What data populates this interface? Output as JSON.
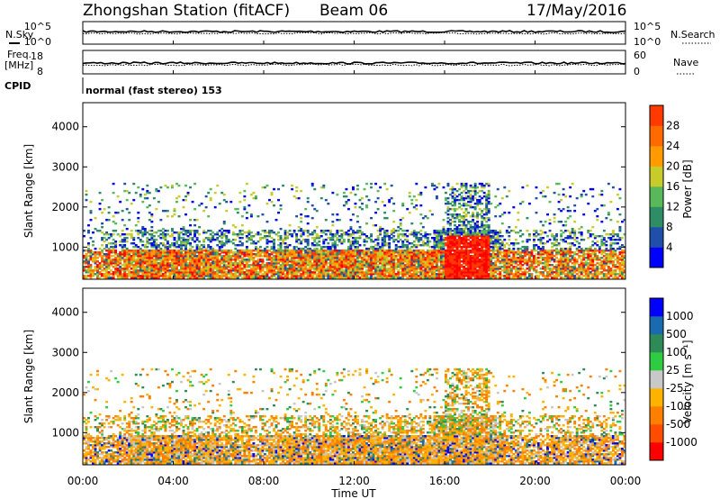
{
  "header": {
    "station": "Zhongshan Station (fitACF)",
    "beam": "Beam 06",
    "date": "17/May/2016"
  },
  "panels": {
    "nsky": {
      "label": "N.Sky",
      "tick_top": "10^5",
      "tick_bottom": "10^0"
    },
    "nsearch": {
      "label": "N.Search",
      "tick_top": "10^5",
      "tick_bottom": "10^0"
    },
    "freq": {
      "label_line1": "Freq.",
      "label_line2": "[MHz]",
      "tick_top": "18",
      "tick_bottom": "8"
    },
    "nave": {
      "label": "Nave",
      "tick_top": "60",
      "tick_bottom": "0"
    },
    "cpid": {
      "label": "CPID",
      "text": "normal (fast stereo) 153"
    }
  },
  "colors": {
    "power": [
      "#0000ff",
      "#1f4fa8",
      "#2f8d66",
      "#58b85a",
      "#c8cc2a",
      "#ff9b00",
      "#ff6a00",
      "#ff3a00",
      "#ff0000"
    ],
    "velocity": [
      "#ff0000",
      "#ff4d00",
      "#ff7f00",
      "#ffb300",
      "#c8c8c8",
      "#2ecc40",
      "#2e8b57",
      "#1a6ab0",
      "#0000ff"
    ]
  },
  "chart_data": [
    {
      "type": "heatmap",
      "name": "power",
      "ylabel": "Slant Range [km]",
      "y_ticks": [
        "1000",
        "2000",
        "3000",
        "4000"
      ],
      "ylim": [
        200,
        4600
      ],
      "colorbar_label": "Power [dB]",
      "colorbar_ticks": [
        "4",
        "8",
        "12",
        "16",
        "20",
        "24",
        "28"
      ],
      "colorbar_range": [
        0,
        32
      ]
    },
    {
      "type": "heatmap",
      "name": "velocity",
      "ylabel": "Slant Range [km]",
      "y_ticks": [
        "1000",
        "2000",
        "3000",
        "4000"
      ],
      "ylim": [
        200,
        4600
      ],
      "colorbar_label": "Velocity [m s⁻¹]",
      "colorbar_ticks": [
        "-1000",
        "-500",
        "-100",
        "-25",
        "25",
        "100",
        "500",
        "1000"
      ]
    }
  ],
  "xaxis": {
    "label": "Time UT",
    "ticks": [
      "00:00",
      "04:00",
      "08:00",
      "12:00",
      "16:00",
      "20:00",
      "00:00"
    ]
  }
}
